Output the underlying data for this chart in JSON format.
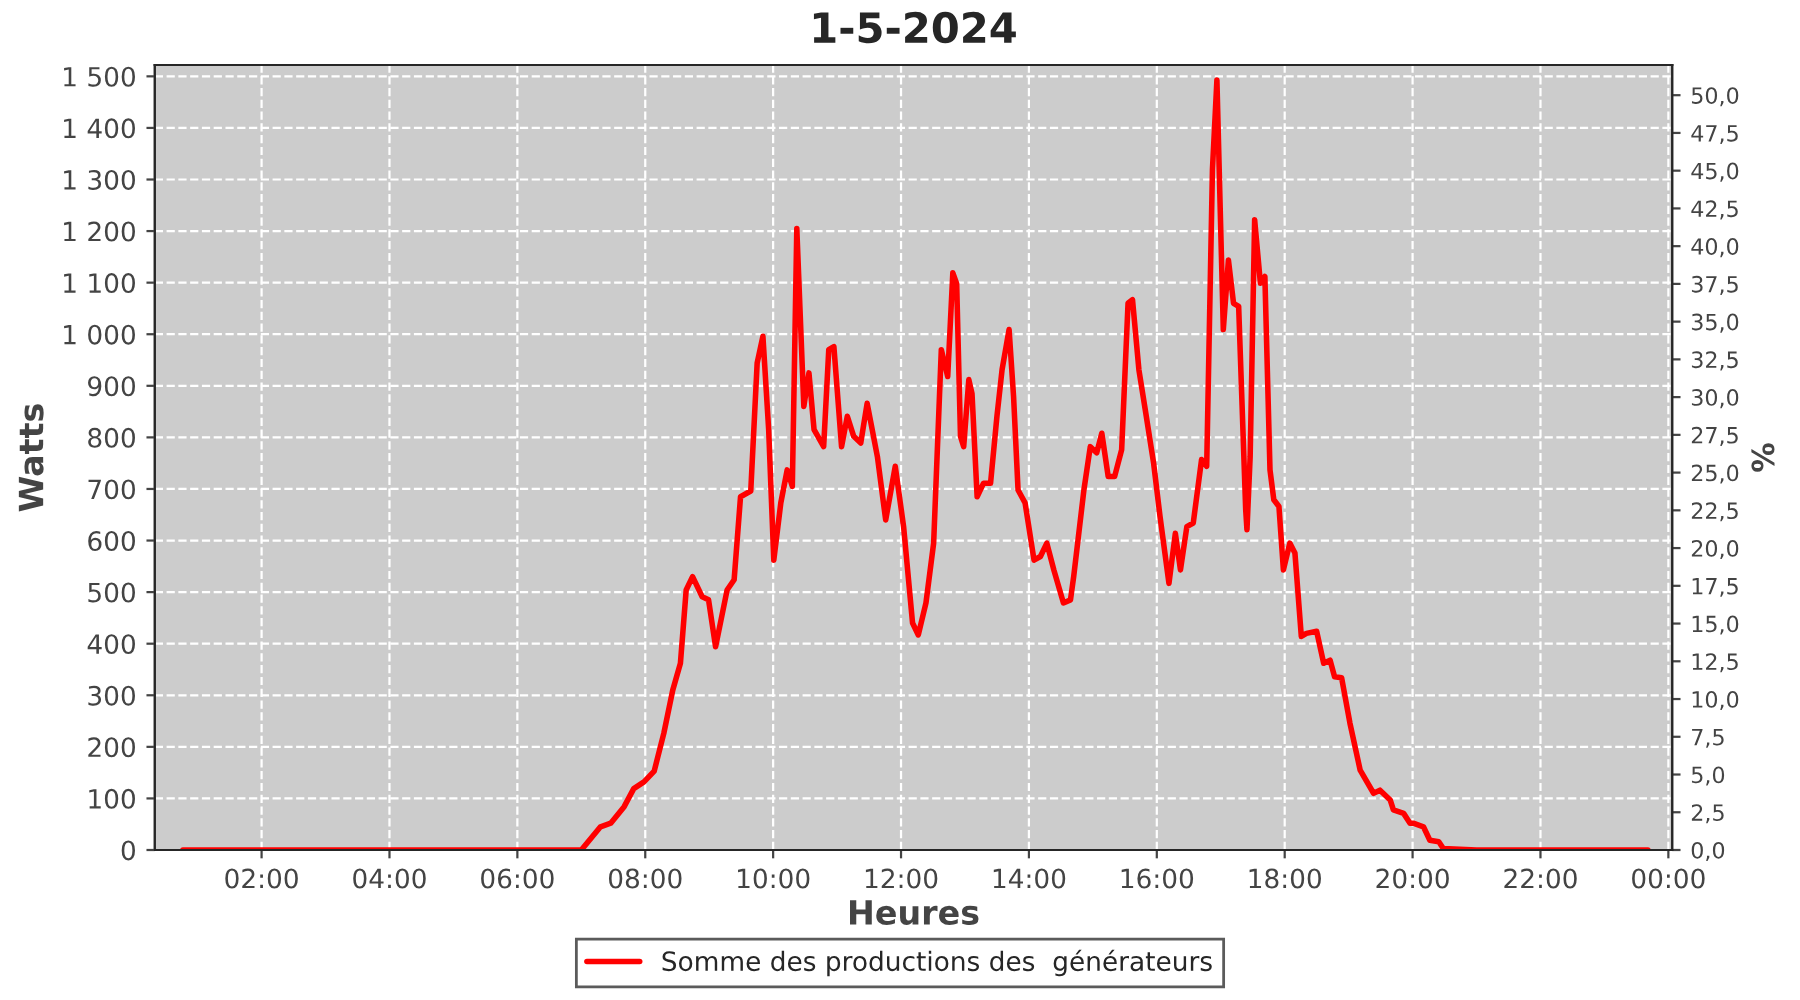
{
  "chart_data": {
    "type": "line",
    "title": "1-5-2024",
    "xlabel": "Heures",
    "ylabel": "Watts",
    "y2label": "%",
    "legend": "bottom",
    "grid": true,
    "marker": "none",
    "line_style": "solid",
    "xlim": [
      0.33,
      24.06
    ],
    "xticks": [
      {
        "value": 2,
        "label": "02:00"
      },
      {
        "value": 4,
        "label": "04:00"
      },
      {
        "value": 6,
        "label": "06:00"
      },
      {
        "value": 8,
        "label": "08:00"
      },
      {
        "value": 10,
        "label": "10:00"
      },
      {
        "value": 12,
        "label": "12:00"
      },
      {
        "value": 14,
        "label": "14:00"
      },
      {
        "value": 16,
        "label": "16:00"
      },
      {
        "value": 18,
        "label": "18:00"
      },
      {
        "value": 20,
        "label": "20:00"
      },
      {
        "value": 22,
        "label": "22:00"
      },
      {
        "value": 24,
        "label": "00:00"
      }
    ],
    "ylim": [
      0,
      1522
    ],
    "yticks": [
      0,
      100,
      200,
      300,
      400,
      500,
      600,
      700,
      800,
      900,
      {
        "value": 1000,
        "label": "1 000"
      },
      {
        "value": 1100,
        "label": "1 100"
      },
      {
        "value": 1200,
        "label": "1 200"
      },
      {
        "value": 1300,
        "label": "1 300"
      },
      {
        "value": 1400,
        "label": "1 400"
      },
      {
        "value": 1500,
        "label": "1 500"
      }
    ],
    "y2lim": [
      0,
      52.0
    ],
    "y2ticks": [
      {
        "value": 0,
        "label": "0,0"
      },
      {
        "value": 2.5,
        "label": "2,5"
      },
      {
        "value": 5,
        "label": "5,0"
      },
      {
        "value": 7.5,
        "label": "7,5"
      },
      {
        "value": 10,
        "label": "10,0"
      },
      {
        "value": 12.5,
        "label": "12,5"
      },
      {
        "value": 15,
        "label": "15,0"
      },
      {
        "value": 17.5,
        "label": "17,5"
      },
      {
        "value": 20,
        "label": "20,0"
      },
      {
        "value": 22.5,
        "label": "22,5"
      },
      {
        "value": 25,
        "label": "25,0"
      },
      {
        "value": 27.5,
        "label": "27,5"
      },
      {
        "value": 30,
        "label": "30,0"
      },
      {
        "value": 32.5,
        "label": "32,5"
      },
      {
        "value": 35,
        "label": "35,0"
      },
      {
        "value": 37.5,
        "label": "37,5"
      },
      {
        "value": 40,
        "label": "40,0"
      },
      {
        "value": 42.5,
        "label": "42,5"
      },
      {
        "value": 45,
        "label": "45,0"
      },
      {
        "value": 47.5,
        "label": "47,5"
      },
      {
        "value": 50,
        "label": "50,0"
      }
    ],
    "series": [
      {
        "name": "Somme des productions des  générateurs",
        "color": "#ff0000",
        "x": [
          0.77,
          2.0,
          4.0,
          5.0,
          6.0,
          7.0,
          7.3,
          7.46,
          7.67,
          7.82,
          7.98,
          8.14,
          8.29,
          8.43,
          8.55,
          8.64,
          8.74,
          8.89,
          8.99,
          9.1,
          9.28,
          9.39,
          9.49,
          9.65,
          9.75,
          9.84,
          9.93,
          10.01,
          10.12,
          10.22,
          10.3,
          10.37,
          10.48,
          10.56,
          10.64,
          10.79,
          10.87,
          10.95,
          11.07,
          11.16,
          11.26,
          11.37,
          11.47,
          11.63,
          11.76,
          11.91,
          12.04,
          12.18,
          12.27,
          12.39,
          12.51,
          12.63,
          12.73,
          12.81,
          12.87,
          12.93,
          12.98,
          13.06,
          13.11,
          13.19,
          13.29,
          13.4,
          13.5,
          13.58,
          13.69,
          13.76,
          13.83,
          13.94,
          14.08,
          14.18,
          14.28,
          14.39,
          14.54,
          14.65,
          14.7,
          14.86,
          14.96,
          15.06,
          15.14,
          15.24,
          15.34,
          15.45,
          15.55,
          15.62,
          15.72,
          15.82,
          15.95,
          16.05,
          16.19,
          16.29,
          16.37,
          16.47,
          16.57,
          16.7,
          16.78,
          16.87,
          16.94,
          17.04,
          17.12,
          17.2,
          17.28,
          17.39,
          17.41,
          17.46,
          17.53,
          17.62,
          17.69,
          17.77,
          17.83,
          17.91,
          17.98,
          18.08,
          18.16,
          18.26,
          18.34,
          18.5,
          18.61,
          18.71,
          18.78,
          18.89,
          19.02,
          19.18,
          19.39,
          19.49,
          19.65,
          19.7,
          19.86,
          19.96,
          20.01,
          20.17,
          20.27,
          20.41,
          20.48,
          21.0,
          22.0,
          23.0,
          23.68
        ],
        "values": [
          0,
          0,
          0,
          0,
          0,
          0,
          45,
          52,
          84,
          119,
          132,
          153,
          226,
          310,
          362,
          504,
          530,
          491,
          485,
          394,
          504,
          524,
          685,
          696,
          944,
          996,
          815,
          562,
          673,
          737,
          705,
          1205,
          860,
          925,
          815,
          782,
          970,
          976,
          782,
          841,
          802,
          789,
          866,
          763,
          640,
          744,
          627,
          440,
          417,
          479,
          595,
          970,
          918,
          1119,
          1098,
          802,
          782,
          912,
          885,
          685,
          711,
          711,
          841,
          931,
          1009,
          879,
          698,
          673,
          562,
          569,
          595,
          543,
          479,
          485,
          530,
          698,
          782,
          770,
          808,
          724,
          724,
          776,
          1060,
          1067,
          931,
          853,
          750,
          647,
          517,
          614,
          543,
          627,
          634,
          757,
          744,
          1319,
          1493,
          1009,
          1144,
          1060,
          1054,
          660,
          621,
          763,
          1222,
          1099,
          1112,
          737,
          679,
          666,
          543,
          595,
          576,
          414,
          420,
          424,
          362,
          368,
          336,
          334,
          246,
          155,
          110,
          116,
          97,
          78,
          71,
          52,
          52,
          45,
          19,
          16,
          3,
          0,
          0,
          0,
          0
        ]
      }
    ]
  }
}
